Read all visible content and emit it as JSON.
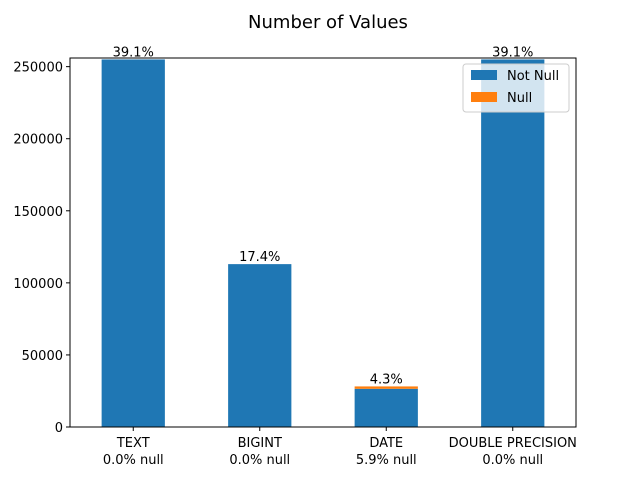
{
  "chart_data": {
    "type": "bar",
    "stacked": true,
    "title": "Number of Values",
    "categories": [
      "TEXT",
      "BIGINT",
      "DATE",
      "DOUBLE PRECISION"
    ],
    "category_subtitles": [
      "0.0% null",
      "0.0% null",
      "5.9% null",
      "0.0% null"
    ],
    "series": [
      {
        "name": "Not Null",
        "values": [
          255000,
          113000,
          26500,
          255000
        ]
      },
      {
        "name": "Null",
        "values": [
          0,
          0,
          1650,
          0
        ]
      }
    ],
    "bar_labels": [
      "39.1%",
      "17.4%",
      "4.3%",
      "39.1%"
    ],
    "ylim": [
      0,
      256000
    ],
    "yticks": [
      0,
      50000,
      100000,
      150000,
      200000,
      250000
    ],
    "xlabel": "",
    "ylabel": "",
    "legend_position": "top-right",
    "grid": false,
    "colors": {
      "Not Null": "#1f77b4",
      "Null": "#ff7f0e"
    }
  }
}
